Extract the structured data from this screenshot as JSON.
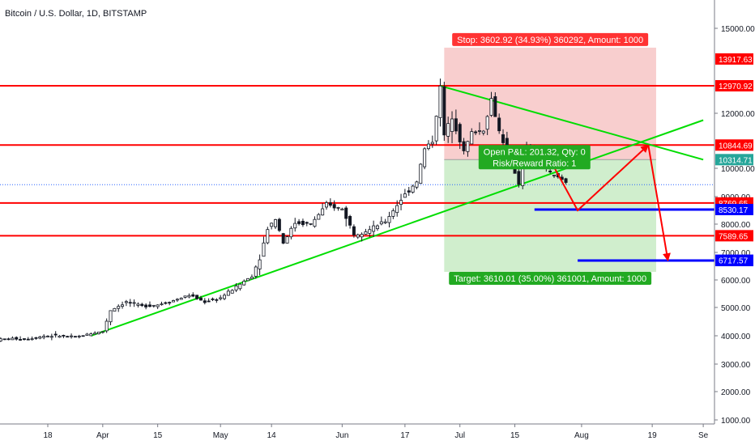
{
  "chart_data": {
    "type": "candlestick",
    "title": "Bitcoin / U.S. Dollar, 1D, BITSTAMP",
    "y_axis": {
      "side": "right",
      "ylim": [
        900,
        16000
      ],
      "ticks": [
        1000,
        2000,
        3000,
        4000,
        5000,
        6000,
        7000,
        8000,
        9000,
        10000,
        12000,
        15000
      ],
      "tick_labels": [
        "1000.00",
        "2000.00",
        "3000.00",
        "4000.00",
        "5000.00",
        "6000.00",
        "7000.00",
        "8000.00",
        "9000.00",
        "10000.00",
        "12000.00",
        "15000.00"
      ]
    },
    "x_axis": {
      "range": [
        "2019-03-05",
        "2019-09-01"
      ],
      "ticks": [
        {
          "date": "2019-03-18",
          "label": "18"
        },
        {
          "date": "2019-04-01",
          "label": "Apr"
        },
        {
          "date": "2019-04-15",
          "label": "15"
        },
        {
          "date": "2019-05-01",
          "label": "May"
        },
        {
          "date": "2019-05-14",
          "label": "14"
        },
        {
          "date": "2019-06-01",
          "label": "Jun"
        },
        {
          "date": "2019-06-17",
          "label": "17"
        },
        {
          "date": "2019-07-01",
          "label": "Jul"
        },
        {
          "date": "2019-07-15",
          "label": "15"
        },
        {
          "date": "2019-08-01",
          "label": "Aug"
        },
        {
          "date": "2019-08-19",
          "label": "19"
        },
        {
          "date": "2019-09-01",
          "label": "Se"
        }
      ]
    },
    "candles_close": [
      {
        "date": "2019-03-05",
        "close": 3860
      },
      {
        "date": "2019-03-09",
        "close": 3900
      },
      {
        "date": "2019-03-13",
        "close": 3890
      },
      {
        "date": "2019-03-17",
        "close": 3990
      },
      {
        "date": "2019-03-21",
        "close": 4000
      },
      {
        "date": "2019-03-25",
        "close": 3950
      },
      {
        "date": "2019-03-29",
        "close": 4080
      },
      {
        "date": "2019-04-01",
        "close": 4150
      },
      {
        "date": "2019-04-03",
        "close": 4900
      },
      {
        "date": "2019-04-07",
        "close": 5200
      },
      {
        "date": "2019-04-11",
        "close": 5050
      },
      {
        "date": "2019-04-15",
        "close": 5100
      },
      {
        "date": "2019-04-19",
        "close": 5250
      },
      {
        "date": "2019-04-23",
        "close": 5450
      },
      {
        "date": "2019-04-27",
        "close": 5200
      },
      {
        "date": "2019-05-01",
        "close": 5350
      },
      {
        "date": "2019-05-05",
        "close": 5750
      },
      {
        "date": "2019-05-09",
        "close": 6150
      },
      {
        "date": "2019-05-11",
        "close": 6800
      },
      {
        "date": "2019-05-13",
        "close": 7850
      },
      {
        "date": "2019-05-15",
        "close": 8200
      },
      {
        "date": "2019-05-17",
        "close": 7350
      },
      {
        "date": "2019-05-20",
        "close": 8050
      },
      {
        "date": "2019-05-24",
        "close": 8000
      },
      {
        "date": "2019-05-28",
        "close": 8700
      },
      {
        "date": "2019-06-01",
        "close": 8550
      },
      {
        "date": "2019-06-04",
        "close": 7650
      },
      {
        "date": "2019-06-08",
        "close": 7800
      },
      {
        "date": "2019-06-12",
        "close": 8100
      },
      {
        "date": "2019-06-16",
        "close": 8900
      },
      {
        "date": "2019-06-20",
        "close": 9550
      },
      {
        "date": "2019-06-22",
        "close": 10700
      },
      {
        "date": "2019-06-24",
        "close": 11000
      },
      {
        "date": "2019-06-26",
        "close": 12900
      },
      {
        "date": "2019-06-27",
        "close": 11200
      },
      {
        "date": "2019-06-29",
        "close": 11900
      },
      {
        "date": "2019-07-02",
        "close": 10600
      },
      {
        "date": "2019-07-04",
        "close": 11300
      },
      {
        "date": "2019-07-07",
        "close": 11400
      },
      {
        "date": "2019-07-09",
        "close": 12500
      },
      {
        "date": "2019-07-11",
        "close": 11350
      },
      {
        "date": "2019-07-14",
        "close": 10300
      },
      {
        "date": "2019-07-16",
        "close": 9450
      },
      {
        "date": "2019-07-18",
        "close": 10700
      },
      {
        "date": "2019-07-21",
        "close": 10600
      },
      {
        "date": "2019-07-24",
        "close": 9800
      },
      {
        "date": "2019-07-27",
        "close": 9600
      },
      {
        "date": "2019-07-28",
        "close": 9500
      }
    ],
    "horizontal_levels": [
      {
        "price": 12970.92,
        "label": "12970.92",
        "color": "#ff0000"
      },
      {
        "price": 10844.69,
        "label": "10844.69",
        "color": "#ff0000"
      },
      {
        "price": 8769.65,
        "label": "8769.65",
        "color": "#ff0000"
      },
      {
        "price": 7589.65,
        "label": "7589.65",
        "color": "#ff0000"
      }
    ],
    "support_levels": [
      {
        "price": 8530.17,
        "label": "8530.17",
        "color": "#0000ff"
      },
      {
        "price": 6704.7,
        "label": "6704.70",
        "color": "#0000ff"
      }
    ],
    "price_labels": [
      {
        "price": 13917.63,
        "label": "13917.63",
        "color": "#ff0000"
      },
      {
        "price": 10314.71,
        "label": "10314.71",
        "color": "#26a69a"
      },
      {
        "price": 6717.57,
        "label": "6717.57",
        "color": "#0000ff"
      }
    ],
    "current_price_line": {
      "price": 9420
    },
    "trendlines": [
      {
        "from": {
          "date": "2019-03-29",
          "price": 4000
        },
        "to": {
          "date": "2019-09-01",
          "price": 11750
        },
        "color": "#00dd00"
      },
      {
        "from": {
          "date": "2019-06-26",
          "price": 12970
        },
        "to": {
          "date": "2019-09-01",
          "price": 10314
        },
        "color": "#00dd00"
      }
    ],
    "position": {
      "entry": {
        "date": "2019-06-27",
        "price": 10314.71
      },
      "end_date": "2019-08-20",
      "stop": 13917.63,
      "target": 6704.7,
      "stop_label": "Stop: 3602.92 (34.93%) 360292, Amount: 1000",
      "target_label": "Target: 3610.01 (35.00%) 361001, Amount: 1000",
      "pnl_label": "Open P&L: 201.32, Qty: 0",
      "ratio_label": "Risk/Reward Ratio: 1"
    },
    "arrows": [
      {
        "points": [
          {
            "date": "2019-07-24",
            "price": 10300
          },
          {
            "date": "2019-07-31",
            "price": 8500
          },
          {
            "date": "2019-08-18",
            "price": 10844.69
          }
        ],
        "color": "#ff0000"
      },
      {
        "points": [
          {
            "date": "2019-08-18",
            "price": 10844.69
          },
          {
            "date": "2019-08-23",
            "price": 6704.7
          }
        ],
        "color": "#ff0000"
      }
    ]
  }
}
